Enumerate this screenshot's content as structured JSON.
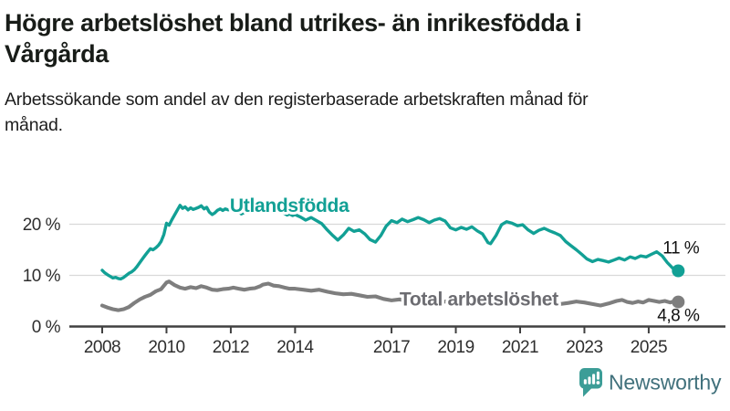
{
  "header": {
    "title": "Högre arbetslöshet bland utrikes- än inrikesfödda i Vårgårda",
    "subtitle": "Arbetssökande som andel av den registerbaserade arbetskraften månad för månad."
  },
  "logo": {
    "wordmark": "Newsworthy",
    "icon": "bar-chart-speech-bubble-icon",
    "accent_color": "#3c9d97"
  },
  "chart_data": {
    "type": "line",
    "title": "Högre arbetslöshet bland utrikes- än inrikesfödda i Vårgårda",
    "subtitle": "Arbetssökande som andel av den registerbaserade arbetskraften månad för månad.",
    "xlabel": "",
    "ylabel": "",
    "x_range": [
      2008,
      2026
    ],
    "y_range": [
      0,
      25
    ],
    "grid": "horizontal",
    "grid_color": "#d9d9d9",
    "axis_color": "#404040",
    "legend_position": "inline-labels",
    "x_tick_years": [
      2008,
      2010,
      2012,
      2014,
      2017,
      2019,
      2021,
      2023,
      2025
    ],
    "y_ticks": [
      {
        "value": 0,
        "label": "0 %"
      },
      {
        "value": 10,
        "label": "10 %"
      },
      {
        "value": 20,
        "label": "20 %"
      }
    ],
    "series": [
      {
        "name": "Utlandsfödda",
        "color": "#12a095",
        "stroke_width": 3.4,
        "end_label": "11 %",
        "end_label_offset": [
          -17,
          -19
        ],
        "label_anchor": {
          "t": 2011.97,
          "v": 22.4
        },
        "points": [
          [
            2008.0,
            11.0
          ],
          [
            2008.08,
            10.5
          ],
          [
            2008.17,
            10.1
          ],
          [
            2008.25,
            9.8
          ],
          [
            2008.33,
            9.5
          ],
          [
            2008.42,
            9.6
          ],
          [
            2008.5,
            9.4
          ],
          [
            2008.58,
            9.3
          ],
          [
            2008.67,
            9.6
          ],
          [
            2008.75,
            10.0
          ],
          [
            2008.83,
            10.4
          ],
          [
            2008.92,
            10.7
          ],
          [
            2009.0,
            11.1
          ],
          [
            2009.08,
            11.7
          ],
          [
            2009.17,
            12.5
          ],
          [
            2009.25,
            13.2
          ],
          [
            2009.33,
            13.9
          ],
          [
            2009.42,
            14.6
          ],
          [
            2009.5,
            15.2
          ],
          [
            2009.58,
            15.0
          ],
          [
            2009.67,
            15.4
          ],
          [
            2009.75,
            15.9
          ],
          [
            2009.83,
            16.6
          ],
          [
            2009.92,
            18.0
          ],
          [
            2010.0,
            20.2
          ],
          [
            2010.08,
            19.8
          ],
          [
            2010.17,
            20.9
          ],
          [
            2010.25,
            21.8
          ],
          [
            2010.33,
            22.7
          ],
          [
            2010.42,
            23.7
          ],
          [
            2010.5,
            23.1
          ],
          [
            2010.58,
            23.4
          ],
          [
            2010.67,
            22.8
          ],
          [
            2010.75,
            23.2
          ],
          [
            2010.83,
            22.9
          ],
          [
            2010.92,
            23.1
          ],
          [
            2011.0,
            23.3
          ],
          [
            2011.08,
            23.6
          ],
          [
            2011.17,
            23.0
          ],
          [
            2011.25,
            23.3
          ],
          [
            2011.33,
            22.4
          ],
          [
            2011.42,
            21.9
          ],
          [
            2011.5,
            22.2
          ],
          [
            2011.58,
            22.7
          ],
          [
            2011.67,
            23.0
          ],
          [
            2011.75,
            22.7
          ],
          [
            2011.83,
            23.0
          ],
          [
            2011.92,
            22.8
          ],
          [
            2012.0,
            23.0
          ],
          [
            2012.08,
            23.3
          ],
          [
            2012.17,
            22.8
          ],
          [
            2012.25,
            22.4
          ],
          [
            2012.33,
            22.0
          ],
          [
            2012.42,
            22.3
          ],
          [
            2012.5,
            22.7
          ],
          [
            2012.58,
            23.0
          ],
          [
            2012.67,
            23.3
          ],
          [
            2012.75,
            23.6
          ],
          [
            2012.83,
            23.2
          ],
          [
            2012.92,
            22.7
          ],
          [
            2013.0,
            22.4
          ],
          [
            2013.08,
            22.8
          ],
          [
            2013.17,
            23.1
          ],
          [
            2013.25,
            22.8
          ],
          [
            2013.33,
            23.0
          ],
          [
            2013.42,
            22.6
          ],
          [
            2013.5,
            22.9
          ],
          [
            2013.58,
            22.4
          ],
          [
            2013.67,
            22.1
          ],
          [
            2013.75,
            21.8
          ],
          [
            2013.83,
            22.0
          ],
          [
            2013.92,
            21.7
          ],
          [
            2014.0,
            21.9
          ],
          [
            2014.17,
            21.4
          ],
          [
            2014.33,
            20.8
          ],
          [
            2014.5,
            21.3
          ],
          [
            2014.67,
            20.7
          ],
          [
            2014.83,
            20.1
          ],
          [
            2015.0,
            18.9
          ],
          [
            2015.17,
            17.8
          ],
          [
            2015.33,
            16.9
          ],
          [
            2015.5,
            17.9
          ],
          [
            2015.67,
            19.2
          ],
          [
            2015.83,
            18.6
          ],
          [
            2016.0,
            18.9
          ],
          [
            2016.17,
            18.1
          ],
          [
            2016.33,
            17.0
          ],
          [
            2016.5,
            16.5
          ],
          [
            2016.67,
            17.8
          ],
          [
            2016.83,
            19.6
          ],
          [
            2017.0,
            20.7
          ],
          [
            2017.17,
            20.3
          ],
          [
            2017.33,
            21.0
          ],
          [
            2017.5,
            20.5
          ],
          [
            2017.67,
            20.9
          ],
          [
            2017.83,
            21.3
          ],
          [
            2018.0,
            20.9
          ],
          [
            2018.17,
            20.3
          ],
          [
            2018.33,
            20.8
          ],
          [
            2018.5,
            21.1
          ],
          [
            2018.67,
            20.6
          ],
          [
            2018.83,
            19.3
          ],
          [
            2019.0,
            18.9
          ],
          [
            2019.17,
            19.4
          ],
          [
            2019.33,
            19.0
          ],
          [
            2019.5,
            19.5
          ],
          [
            2019.67,
            18.7
          ],
          [
            2019.83,
            18.1
          ],
          [
            2020.0,
            16.4
          ],
          [
            2020.08,
            16.2
          ],
          [
            2020.25,
            17.8
          ],
          [
            2020.42,
            19.9
          ],
          [
            2020.58,
            20.5
          ],
          [
            2020.75,
            20.2
          ],
          [
            2020.92,
            19.7
          ],
          [
            2021.08,
            19.9
          ],
          [
            2021.25,
            18.9
          ],
          [
            2021.42,
            18.2
          ],
          [
            2021.58,
            18.8
          ],
          [
            2021.75,
            19.2
          ],
          [
            2021.92,
            18.7
          ],
          [
            2022.08,
            18.3
          ],
          [
            2022.25,
            17.8
          ],
          [
            2022.42,
            16.6
          ],
          [
            2022.58,
            15.8
          ],
          [
            2022.75,
            15.0
          ],
          [
            2022.92,
            14.1
          ],
          [
            2023.08,
            13.2
          ],
          [
            2023.25,
            12.7
          ],
          [
            2023.42,
            13.1
          ],
          [
            2023.58,
            12.9
          ],
          [
            2023.75,
            12.6
          ],
          [
            2023.92,
            13.0
          ],
          [
            2024.08,
            13.4
          ],
          [
            2024.25,
            13.0
          ],
          [
            2024.42,
            13.6
          ],
          [
            2024.58,
            13.3
          ],
          [
            2024.75,
            13.8
          ],
          [
            2024.92,
            13.6
          ],
          [
            2025.08,
            14.1
          ],
          [
            2025.25,
            14.6
          ],
          [
            2025.42,
            13.8
          ],
          [
            2025.58,
            12.5
          ],
          [
            2025.75,
            11.4
          ],
          [
            2025.92,
            10.9
          ]
        ]
      },
      {
        "name": "Total arbetslöshet",
        "color": "#7e7e7e",
        "label_color": "#6c6c71",
        "stroke_width": 4.1,
        "end_label": "4,8 %",
        "end_label_offset": [
          -23,
          21
        ],
        "label_anchor": {
          "t": 2017.25,
          "v": 4.07
        },
        "points": [
          [
            2008.0,
            4.1
          ],
          [
            2008.17,
            3.7
          ],
          [
            2008.33,
            3.4
          ],
          [
            2008.5,
            3.2
          ],
          [
            2008.67,
            3.4
          ],
          [
            2008.83,
            3.8
          ],
          [
            2009.0,
            4.6
          ],
          [
            2009.17,
            5.3
          ],
          [
            2009.33,
            5.8
          ],
          [
            2009.5,
            6.2
          ],
          [
            2009.67,
            6.9
          ],
          [
            2009.83,
            7.3
          ],
          [
            2010.0,
            8.6
          ],
          [
            2010.08,
            8.8
          ],
          [
            2010.25,
            8.1
          ],
          [
            2010.42,
            7.6
          ],
          [
            2010.58,
            7.4
          ],
          [
            2010.75,
            7.7
          ],
          [
            2010.92,
            7.5
          ],
          [
            2011.08,
            7.9
          ],
          [
            2011.25,
            7.6
          ],
          [
            2011.42,
            7.2
          ],
          [
            2011.58,
            7.1
          ],
          [
            2011.75,
            7.3
          ],
          [
            2011.92,
            7.4
          ],
          [
            2012.08,
            7.6
          ],
          [
            2012.25,
            7.4
          ],
          [
            2012.42,
            7.2
          ],
          [
            2012.58,
            7.4
          ],
          [
            2012.75,
            7.5
          ],
          [
            2012.92,
            7.9
          ],
          [
            2013.0,
            8.2
          ],
          [
            2013.17,
            8.4
          ],
          [
            2013.33,
            8.0
          ],
          [
            2013.5,
            7.9
          ],
          [
            2013.67,
            7.6
          ],
          [
            2013.83,
            7.4
          ],
          [
            2014.0,
            7.4
          ],
          [
            2014.25,
            7.2
          ],
          [
            2014.5,
            7.0
          ],
          [
            2014.75,
            7.2
          ],
          [
            2015.0,
            6.8
          ],
          [
            2015.25,
            6.5
          ],
          [
            2015.5,
            6.3
          ],
          [
            2015.75,
            6.4
          ],
          [
            2016.0,
            6.1
          ],
          [
            2016.25,
            5.8
          ],
          [
            2016.5,
            5.9
          ],
          [
            2016.75,
            5.4
          ],
          [
            2017.0,
            5.1
          ],
          [
            2017.25,
            5.3
          ],
          [
            2017.5,
            5.0
          ],
          [
            2017.75,
            5.1
          ],
          [
            2018.0,
            4.9
          ],
          [
            2018.25,
            5.0
          ],
          [
            2018.5,
            4.8
          ],
          [
            2018.75,
            4.9
          ],
          [
            2019.0,
            4.7
          ],
          [
            2019.25,
            4.8
          ],
          [
            2019.5,
            4.6
          ],
          [
            2019.75,
            4.7
          ],
          [
            2020.0,
            4.9
          ],
          [
            2020.25,
            5.5
          ],
          [
            2020.42,
            5.8
          ],
          [
            2020.58,
            5.6
          ],
          [
            2020.83,
            5.3
          ],
          [
            2021.0,
            5.2
          ],
          [
            2021.25,
            5.0
          ],
          [
            2021.5,
            4.8
          ],
          [
            2021.75,
            4.6
          ],
          [
            2022.0,
            4.5
          ],
          [
            2022.25,
            4.4
          ],
          [
            2022.5,
            4.6
          ],
          [
            2022.75,
            4.9
          ],
          [
            2023.0,
            4.7
          ],
          [
            2023.25,
            4.4
          ],
          [
            2023.5,
            4.1
          ],
          [
            2023.75,
            4.5
          ],
          [
            2024.0,
            5.0
          ],
          [
            2024.17,
            5.2
          ],
          [
            2024.33,
            4.8
          ],
          [
            2024.5,
            4.6
          ],
          [
            2024.67,
            4.9
          ],
          [
            2024.83,
            4.7
          ],
          [
            2025.0,
            5.2
          ],
          [
            2025.17,
            5.0
          ],
          [
            2025.33,
            4.8
          ],
          [
            2025.5,
            5.0
          ],
          [
            2025.67,
            4.7
          ],
          [
            2025.83,
            5.0
          ],
          [
            2025.92,
            4.8
          ]
        ]
      }
    ]
  }
}
